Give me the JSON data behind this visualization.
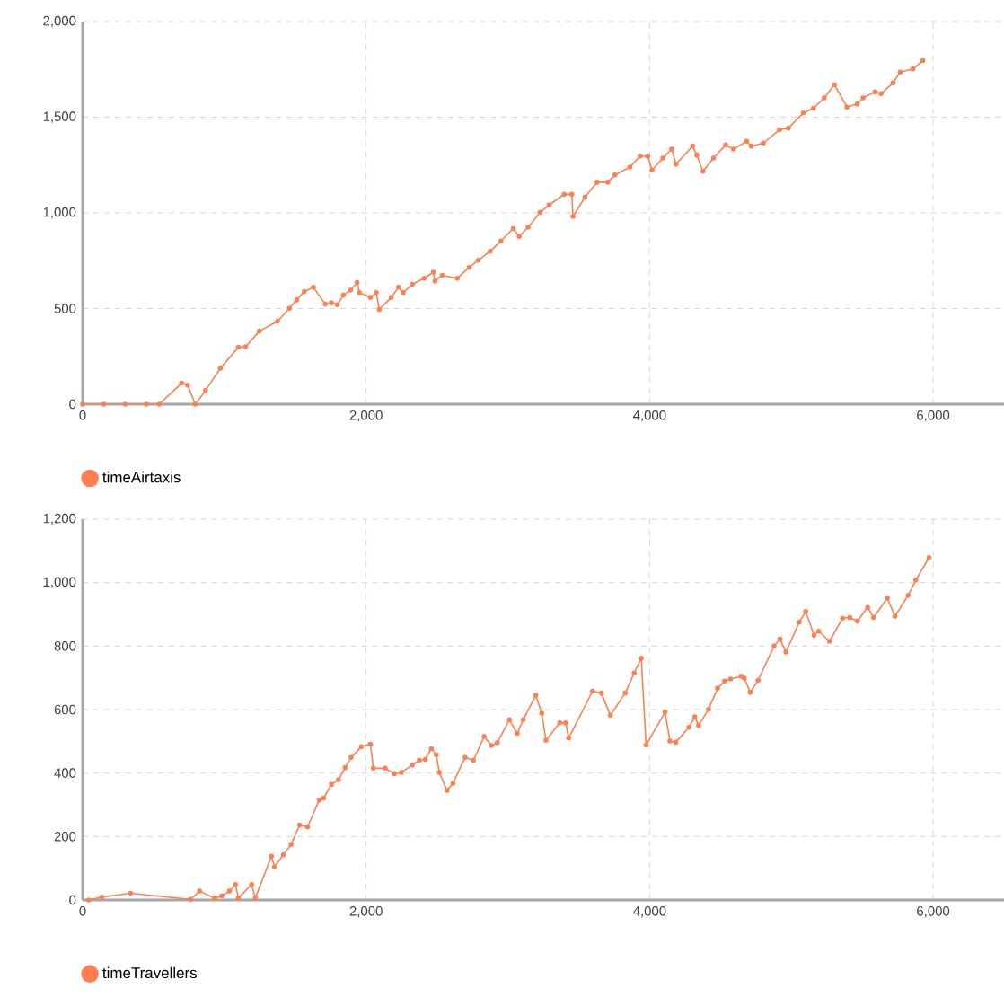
{
  "chart_data": [
    {
      "type": "line",
      "legend": "bottom left",
      "grid": true,
      "marker": "circle",
      "line_style": "solid",
      "xlim": [
        0,
        6500
      ],
      "ylim": [
        0,
        2000
      ],
      "xticks": [
        0,
        {
          "value": 2000,
          "label": "2,000"
        },
        {
          "value": 4000,
          "label": "4,000"
        },
        {
          "value": 6000,
          "label": "6,000"
        }
      ],
      "yticks": [
        0,
        500,
        {
          "value": 1000,
          "label": "1,000"
        },
        {
          "value": 1500,
          "label": "1,500"
        },
        {
          "value": 2000,
          "label": "2,000"
        }
      ],
      "series": [
        {
          "name": "timeAirtaxis",
          "color": "#ff7f50",
          "x": [
            0,
            150,
            300,
            450,
            540,
            698,
            740,
            795,
            867,
            972,
            1099,
            1150,
            1247,
            1374,
            1459,
            1510,
            1564,
            1628,
            1712,
            1755,
            1797,
            1839,
            1890,
            1937,
            1953,
            2030,
            2072,
            2093,
            2178,
            2228,
            2262,
            2326,
            2410,
            2474,
            2486,
            2537,
            2643,
            2727,
            2791,
            2875,
            2951,
            3038,
            3080,
            3143,
            3228,
            3291,
            3397,
            3451,
            3460,
            3544,
            3629,
            3705,
            3755,
            3861,
            3932,
            3987,
            4017,
            4093,
            4156,
            4186,
            4304,
            4333,
            4376,
            4451,
            4536,
            4591,
            4684,
            4717,
            4802,
            4916,
            4979,
            5084,
            5156,
            5232,
            5304,
            5392,
            5464,
            5506,
            5591,
            5633,
            5717,
            5768,
            5857,
            5928
          ],
          "values": [
            0,
            0,
            0,
            0,
            0,
            110,
            100,
            0,
            72,
            188,
            298,
            300,
            382,
            433,
            501,
            545,
            589,
            611,
            523,
            530,
            520,
            570,
            596,
            636,
            583,
            558,
            583,
            495,
            558,
            611,
            583,
            627,
            658,
            690,
            643,
            674,
            658,
            715,
            752,
            799,
            853,
            918,
            877,
            925,
            1003,
            1041,
            1097,
            1097,
            981,
            1082,
            1160,
            1160,
            1198,
            1239,
            1296,
            1296,
            1223,
            1286,
            1333,
            1255,
            1349,
            1302,
            1217,
            1286,
            1355,
            1333,
            1374,
            1349,
            1365,
            1434,
            1443,
            1522,
            1547,
            1601,
            1670,
            1553,
            1569,
            1601,
            1632,
            1623,
            1679,
            1736,
            1752,
            1796
          ]
        }
      ]
    },
    {
      "type": "line",
      "legend": "bottom left",
      "grid": true,
      "marker": "circle",
      "line_style": "solid",
      "xlim": [
        0,
        6500
      ],
      "ylim": [
        0,
        1200
      ],
      "xticks": [
        0,
        {
          "value": 2000,
          "label": "2,000"
        },
        {
          "value": 4000,
          "label": "4,000"
        },
        {
          "value": 6000,
          "label": "6,000"
        }
      ],
      "yticks": [
        0,
        200,
        400,
        600,
        800,
        {
          "value": 1000,
          "label": "1,000"
        },
        {
          "value": 1200,
          "label": "1,200"
        }
      ],
      "series": [
        {
          "name": "timeTravellers",
          "color": "#ff7f50",
          "x": [
            42,
            135,
            338,
            761,
            825,
            930,
            981,
            1036,
            1078,
            1099,
            1192,
            1218,
            1332,
            1353,
            1416,
            1471,
            1531,
            1586,
            1670,
            1700,
            1755,
            1805,
            1852,
            1894,
            1966,
            2030,
            2051,
            2135,
            2199,
            2249,
            2326,
            2376,
            2418,
            2460,
            2495,
            2516,
            2571,
            2613,
            2698,
            2757,
            2833,
            2884,
            2926,
            3011,
            3066,
            3108,
            3197,
            3239,
            3269,
            3366,
            3408,
            3429,
            3597,
            3660,
            3723,
            3828,
            3891,
            3941,
            3975,
            4109,
            4143,
            4185,
            4277,
            4319,
            4345,
            4416,
            4479,
            4529,
            4571,
            4647,
            4668,
            4710,
            4765,
            4878,
            4920,
            4962,
            5055,
            5101,
            5160,
            5193,
            5269,
            5361,
            5412,
            5466,
            5538,
            5580,
            5677,
            5731,
            5824,
            5878,
            5971
          ],
          "values": [
            0,
            9,
            21,
            2,
            28,
            6,
            13,
            28,
            49,
            6,
            49,
            6,
            138,
            104,
            142,
            175,
            236,
            230,
            315,
            321,
            364,
            379,
            417,
            449,
            483,
            491,
            415,
            415,
            398,
            402,
            425,
            440,
            443,
            477,
            458,
            402,
            345,
            368,
            449,
            440,
            515,
            487,
            496,
            568,
            525,
            568,
            645,
            588,
            503,
            558,
            558,
            510,
            658,
            652,
            582,
            652,
            715,
            762,
            488,
            592,
            501,
            497,
            544,
            577,
            550,
            601,
            667,
            690,
            696,
            705,
            699,
            654,
            692,
            800,
            822,
            781,
            875,
            909,
            834,
            847,
            815,
            888,
            890,
            879,
            922,
            890,
            951,
            894,
            960,
            1008,
            1079
          ]
        }
      ]
    }
  ]
}
